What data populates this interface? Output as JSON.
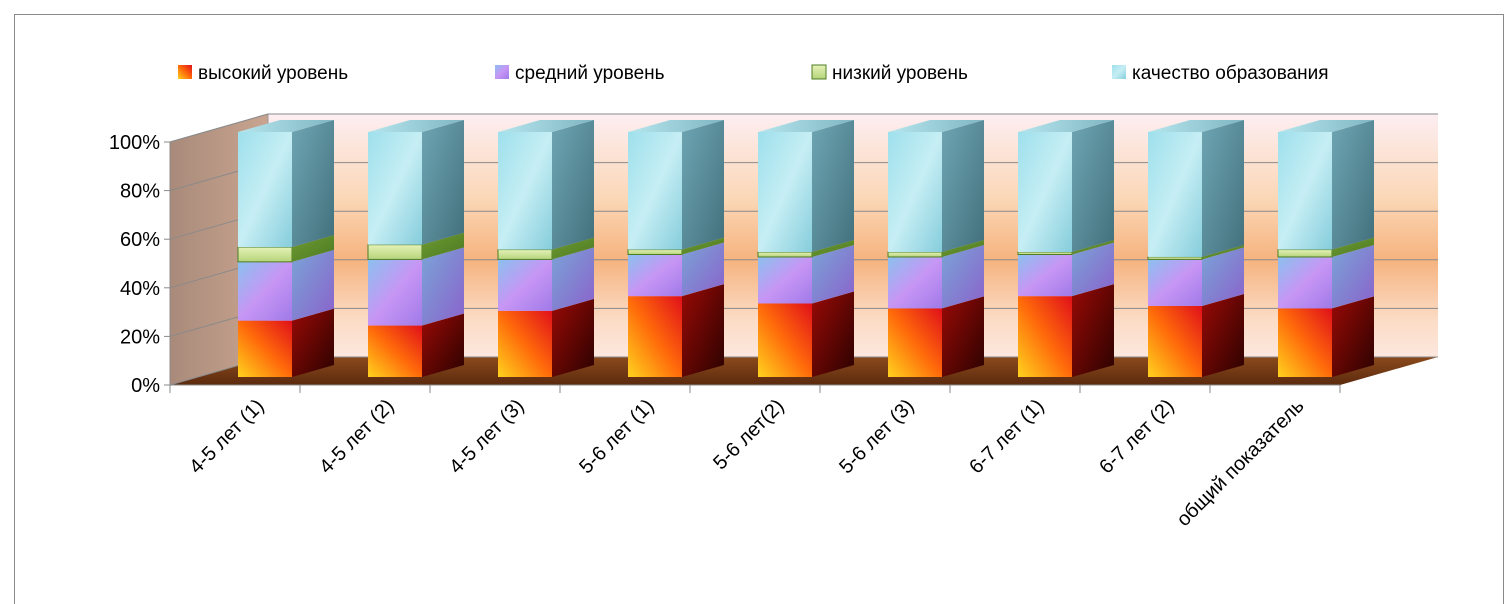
{
  "chart_data": {
    "type": "bar",
    "stacked": true,
    "percent_stacked": true,
    "three_d": true,
    "categories": [
      "4-5 лет (1)",
      "4-5 лет (2)",
      "4-5 лет (3)",
      "5-6 лет (1)",
      "5-6 лет(2)",
      "5-6 лет (3)",
      "6-7 лет (1)",
      "6-7 лет (2)",
      "общий показатель"
    ],
    "series": [
      {
        "name": "высокий уровень",
        "values": [
          23,
          21,
          27,
          33,
          30,
          28,
          33,
          29,
          28
        ],
        "color": "#e8261a"
      },
      {
        "name": "средний уровень",
        "values": [
          24,
          27,
          21,
          17,
          19,
          21,
          17,
          19,
          21
        ],
        "color": "#b78cf0"
      },
      {
        "name": "низкий уровень",
        "values": [
          6,
          6,
          4,
          2,
          2,
          2,
          1,
          1,
          3
        ],
        "color": "#8fbd4a"
      },
      {
        "name": "качество образования",
        "values": [
          47,
          46,
          48,
          48,
          49,
          49,
          49,
          51,
          48
        ],
        "color": "#8fd8e6"
      }
    ],
    "y_ticks": [
      "0%",
      "20%",
      "40%",
      "60%",
      "80%",
      "100%"
    ],
    "ylim": [
      0,
      100
    ],
    "legend_position": "top",
    "grid": true
  }
}
